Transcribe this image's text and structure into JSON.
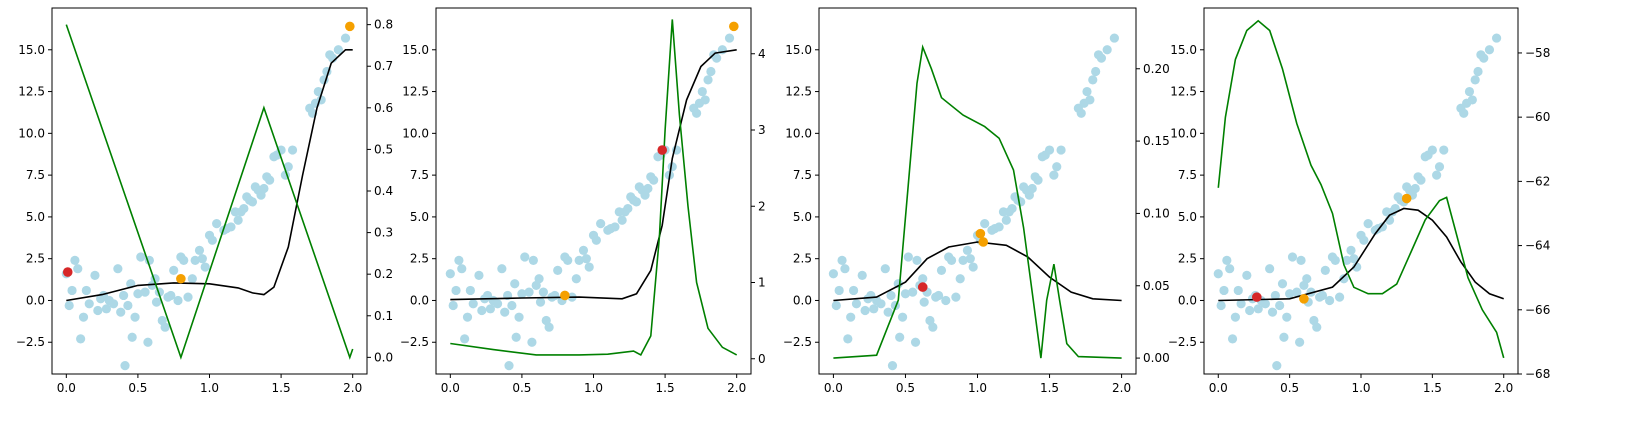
{
  "chart_data": [
    {
      "type": "scatter",
      "x_ticks": [
        "0.0",
        "0.5",
        "1.0",
        "1.5",
        "2.0"
      ],
      "xlim": [
        -0.1,
        2.1
      ],
      "y_ticks": [
        "−2.5",
        "0.0",
        "2.5",
        "5.0",
        "7.5",
        "10.0",
        "12.5",
        "15.0"
      ],
      "ylim": [
        -4.4,
        17.5
      ],
      "y2_ticks": [
        "0.0",
        "0.1",
        "0.2",
        "0.3",
        "0.4",
        "0.5",
        "0.6",
        "0.7",
        "0.8"
      ],
      "y2lim": [
        -0.04,
        0.84
      ],
      "red_point": {
        "x": 0.01,
        "y": 1.7
      },
      "orange_points": [
        {
          "x": 0.8,
          "y": 1.3
        },
        {
          "x": 1.98,
          "y": 16.4
        }
      ],
      "black_curve": [
        [
          0,
          0
        ],
        [
          0.25,
          0.35
        ],
        [
          0.5,
          0.9
        ],
        [
          0.75,
          1.05
        ],
        [
          1.0,
          1.0
        ],
        [
          1.2,
          0.75
        ],
        [
          1.3,
          0.45
        ],
        [
          1.38,
          0.35
        ],
        [
          1.45,
          0.8
        ],
        [
          1.55,
          3.2
        ],
        [
          1.65,
          7.5
        ],
        [
          1.75,
          11.5
        ],
        [
          1.85,
          14.2
        ],
        [
          1.95,
          15.0
        ],
        [
          2.0,
          15.0
        ]
      ],
      "green_curve": [
        [
          0,
          0.8
        ],
        [
          0.8,
          0.0
        ],
        [
          1.38,
          0.6
        ],
        [
          1.98,
          0.0
        ],
        [
          2.0,
          0.02
        ]
      ]
    },
    {
      "type": "scatter",
      "x_ticks": [
        "0.0",
        "0.5",
        "1.0",
        "1.5",
        "2.0"
      ],
      "xlim": [
        -0.1,
        2.1
      ],
      "y_ticks": [
        "−2.5",
        "0.0",
        "2.5",
        "5.0",
        "7.5",
        "10.0",
        "12.5",
        "15.0"
      ],
      "ylim": [
        -4.4,
        17.5
      ],
      "y2_ticks": [
        "0",
        "1",
        "2",
        "3",
        "4"
      ],
      "y2lim": [
        -0.2,
        4.6
      ],
      "red_point": {
        "x": 1.48,
        "y": 9.0
      },
      "orange_points": [
        {
          "x": 0.8,
          "y": 0.3
        },
        {
          "x": 1.98,
          "y": 16.4
        }
      ],
      "black_curve": [
        [
          0,
          0.05
        ],
        [
          0.5,
          0.15
        ],
        [
          0.9,
          0.2
        ],
        [
          1.2,
          0.1
        ],
        [
          1.3,
          0.4
        ],
        [
          1.4,
          1.8
        ],
        [
          1.48,
          4.5
        ],
        [
          1.55,
          8.5
        ],
        [
          1.65,
          12.0
        ],
        [
          1.75,
          14.0
        ],
        [
          1.85,
          14.8
        ],
        [
          2.0,
          15.0
        ]
      ],
      "green_curve": [
        [
          0,
          0.2
        ],
        [
          0.3,
          0.12
        ],
        [
          0.6,
          0.05
        ],
        [
          0.9,
          0.05
        ],
        [
          1.1,
          0.06
        ],
        [
          1.28,
          0.1
        ],
        [
          1.33,
          0.05
        ],
        [
          1.4,
          0.3
        ],
        [
          1.46,
          1.6
        ],
        [
          1.5,
          3.0
        ],
        [
          1.55,
          4.45
        ],
        [
          1.6,
          3.2
        ],
        [
          1.66,
          2.0
        ],
        [
          1.72,
          1.0
        ],
        [
          1.8,
          0.4
        ],
        [
          1.9,
          0.15
        ],
        [
          2.0,
          0.05
        ]
      ]
    },
    {
      "type": "scatter",
      "x_ticks": [
        "0.0",
        "0.5",
        "1.0",
        "1.5",
        "2.0"
      ],
      "xlim": [
        -0.1,
        2.1
      ],
      "y_ticks": [
        "−2.5",
        "0.0",
        "2.5",
        "5.0",
        "7.5",
        "10.0",
        "12.5",
        "15.0"
      ],
      "ylim": [
        -4.4,
        17.5
      ],
      "y2_ticks": [
        "0.00",
        "0.05",
        "0.10",
        "0.15",
        "0.20"
      ],
      "y2lim": [
        -0.011,
        0.242
      ],
      "red_point": {
        "x": 0.62,
        "y": 0.8
      },
      "orange_points": [
        {
          "x": 1.02,
          "y": 4.0
        },
        {
          "x": 1.04,
          "y": 3.5
        }
      ],
      "black_curve": [
        [
          0,
          0
        ],
        [
          0.3,
          0.2
        ],
        [
          0.5,
          1.1
        ],
        [
          0.65,
          2.5
        ],
        [
          0.8,
          3.2
        ],
        [
          1.0,
          3.5
        ],
        [
          1.2,
          3.3
        ],
        [
          1.35,
          2.6
        ],
        [
          1.5,
          1.4
        ],
        [
          1.65,
          0.5
        ],
        [
          1.8,
          0.1
        ],
        [
          2.0,
          0
        ]
      ],
      "green_curve": [
        [
          0,
          0
        ],
        [
          0.3,
          0.002
        ],
        [
          0.45,
          0.04
        ],
        [
          0.52,
          0.12
        ],
        [
          0.58,
          0.19
        ],
        [
          0.62,
          0.215
        ],
        [
          0.68,
          0.2
        ],
        [
          0.75,
          0.18
        ],
        [
          0.9,
          0.168
        ],
        [
          1.05,
          0.16
        ],
        [
          1.15,
          0.152
        ],
        [
          1.25,
          0.13
        ],
        [
          1.32,
          0.09
        ],
        [
          1.38,
          0.045
        ],
        [
          1.44,
          0.0
        ],
        [
          1.48,
          0.04
        ],
        [
          1.53,
          0.065
        ],
        [
          1.57,
          0.04
        ],
        [
          1.62,
          0.01
        ],
        [
          1.7,
          0.001
        ],
        [
          2.0,
          0.0
        ]
      ]
    },
    {
      "type": "scatter",
      "x_ticks": [
        "0.0",
        "0.5",
        "1.0",
        "1.5",
        "2.0"
      ],
      "xlim": [
        -0.1,
        2.1
      ],
      "y_ticks": [
        "−2.5",
        "0.0",
        "2.5",
        "5.0",
        "7.5",
        "10.0",
        "12.5",
        "15.0"
      ],
      "ylim": [
        -4.4,
        17.5
      ],
      "y2_ticks": [
        "−68",
        "−66",
        "−64",
        "−62",
        "−60",
        "−58"
      ],
      "y2lim": [
        -68.0,
        -56.6
      ],
      "red_point": {
        "x": 0.27,
        "y": 0.2
      },
      "orange_points": [
        {
          "x": 0.6,
          "y": 0.1
        },
        {
          "x": 1.32,
          "y": 6.1
        }
      ],
      "black_curve": [
        [
          0,
          0
        ],
        [
          0.5,
          0.1
        ],
        [
          0.8,
          0.8
        ],
        [
          0.95,
          2.0
        ],
        [
          1.1,
          4.0
        ],
        [
          1.2,
          5.1
        ],
        [
          1.3,
          5.5
        ],
        [
          1.4,
          5.4
        ],
        [
          1.5,
          4.8
        ],
        [
          1.6,
          3.8
        ],
        [
          1.7,
          2.3
        ],
        [
          1.8,
          1.1
        ],
        [
          1.9,
          0.4
        ],
        [
          2.0,
          0.1
        ]
      ],
      "green_curve": [
        [
          0,
          -62.2
        ],
        [
          0.05,
          -60.0
        ],
        [
          0.12,
          -58.2
        ],
        [
          0.2,
          -57.3
        ],
        [
          0.28,
          -57.0
        ],
        [
          0.36,
          -57.3
        ],
        [
          0.45,
          -58.5
        ],
        [
          0.55,
          -60.2
        ],
        [
          0.65,
          -61.5
        ],
        [
          0.72,
          -62.1
        ],
        [
          0.8,
          -63.0
        ],
        [
          0.88,
          -64.6
        ],
        [
          0.95,
          -65.3
        ],
        [
          1.05,
          -65.5
        ],
        [
          1.15,
          -65.5
        ],
        [
          1.25,
          -65.2
        ],
        [
          1.35,
          -64.2
        ],
        [
          1.45,
          -63.2
        ],
        [
          1.55,
          -62.6
        ],
        [
          1.6,
          -62.5
        ],
        [
          1.66,
          -63.5
        ],
        [
          1.75,
          -65.0
        ],
        [
          1.85,
          -66.0
        ],
        [
          1.95,
          -66.7
        ],
        [
          2.0,
          -67.5
        ]
      ]
    }
  ],
  "scatter_points": [
    [
      0.0,
      1.6
    ],
    [
      0.02,
      -0.3
    ],
    [
      0.04,
      0.6
    ],
    [
      0.06,
      2.4
    ],
    [
      0.08,
      1.9
    ],
    [
      0.1,
      -2.3
    ],
    [
      0.12,
      -1.0
    ],
    [
      0.14,
      0.6
    ],
    [
      0.16,
      -0.2
    ],
    [
      0.2,
      1.5
    ],
    [
      0.22,
      -0.6
    ],
    [
      0.24,
      0.1
    ],
    [
      0.26,
      0.3
    ],
    [
      0.28,
      -0.5
    ],
    [
      0.3,
      0.0
    ],
    [
      0.33,
      -0.2
    ],
    [
      0.36,
      1.9
    ],
    [
      0.38,
      -0.7
    ],
    [
      0.4,
      0.3
    ],
    [
      0.41,
      -3.9
    ],
    [
      0.43,
      -0.3
    ],
    [
      0.45,
      1.0
    ],
    [
      0.46,
      -2.2
    ],
    [
      0.48,
      -1.0
    ],
    [
      0.5,
      0.4
    ],
    [
      0.52,
      2.6
    ],
    [
      0.55,
      0.5
    ],
    [
      0.57,
      -2.5
    ],
    [
      0.58,
      2.4
    ],
    [
      0.6,
      0.9
    ],
    [
      0.62,
      1.3
    ],
    [
      0.63,
      -0.1
    ],
    [
      0.65,
      0.5
    ],
    [
      0.67,
      -1.2
    ],
    [
      0.69,
      -1.6
    ],
    [
      0.71,
      0.2
    ],
    [
      0.73,
      0.3
    ],
    [
      0.75,
      1.8
    ],
    [
      0.78,
      0.0
    ],
    [
      0.8,
      2.6
    ],
    [
      0.82,
      2.4
    ],
    [
      0.85,
      0.2
    ],
    [
      0.88,
      1.3
    ],
    [
      0.9,
      2.4
    ],
    [
      0.93,
      3.0
    ],
    [
      0.95,
      2.5
    ],
    [
      0.97,
      2.0
    ],
    [
      1.0,
      3.9
    ],
    [
      1.02,
      3.6
    ],
    [
      1.05,
      4.6
    ],
    [
      1.1,
      4.2
    ],
    [
      1.12,
      4.3
    ],
    [
      1.15,
      4.4
    ],
    [
      1.18,
      5.3
    ],
    [
      1.2,
      4.8
    ],
    [
      1.22,
      5.3
    ],
    [
      1.24,
      5.5
    ],
    [
      1.26,
      6.2
    ],
    [
      1.28,
      6.0
    ],
    [
      1.3,
      5.9
    ],
    [
      1.32,
      6.8
    ],
    [
      1.34,
      6.6
    ],
    [
      1.36,
      6.3
    ],
    [
      1.38,
      6.7
    ],
    [
      1.4,
      7.4
    ],
    [
      1.42,
      7.2
    ],
    [
      1.45,
      8.6
    ],
    [
      1.47,
      8.7
    ],
    [
      1.5,
      9.0
    ],
    [
      1.53,
      7.5
    ],
    [
      1.55,
      8.0
    ],
    [
      1.58,
      9.0
    ],
    [
      1.7,
      11.5
    ],
    [
      1.72,
      11.2
    ],
    [
      1.74,
      11.8
    ],
    [
      1.76,
      12.5
    ],
    [
      1.78,
      12.0
    ],
    [
      1.8,
      13.2
    ],
    [
      1.82,
      13.7
    ],
    [
      1.84,
      14.7
    ],
    [
      1.86,
      14.5
    ],
    [
      1.9,
      15.0
    ],
    [
      1.95,
      15.7
    ]
  ],
  "colors": {
    "scatter": "#add8e6",
    "black": "#000000",
    "green": "#008000",
    "red": "#d62728",
    "orange": "#f5a000"
  }
}
